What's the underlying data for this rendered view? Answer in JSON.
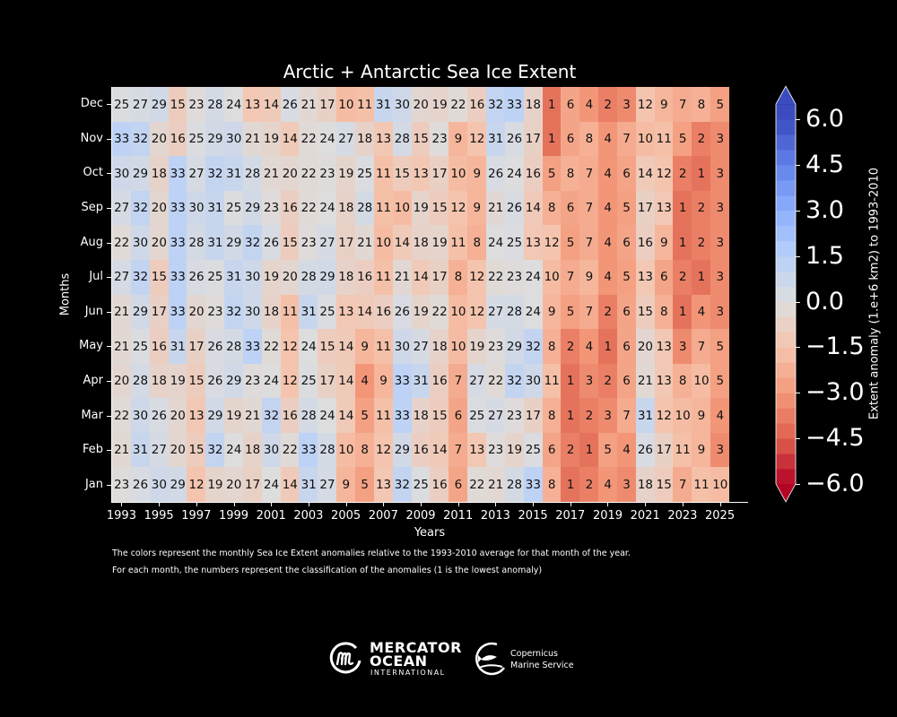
{
  "chart_data": {
    "type": "heatmap",
    "title": "Arctic + Antarctic Sea Ice Extent",
    "xlabel": "Years",
    "ylabel": "Months",
    "x": [
      1993,
      1994,
      1995,
      1996,
      1997,
      1998,
      1999,
      2000,
      2001,
      2002,
      2003,
      2004,
      2005,
      2006,
      2007,
      2008,
      2009,
      2010,
      2011,
      2012,
      2013,
      2014,
      2015,
      2016,
      2017,
      2018,
      2019,
      2020,
      2021,
      2022,
      2023,
      2024,
      2025
    ],
    "x_tick_labels": [
      "1993",
      "1995",
      "1997",
      "1999",
      "2001",
      "2003",
      "2005",
      "2007",
      "2009",
      "2011",
      "2013",
      "2015",
      "2017",
      "2019",
      "2021",
      "2023",
      "2025"
    ],
    "y": [
      "Dec",
      "Nov",
      "Oct",
      "Sep",
      "Aug",
      "Jul",
      "Jun",
      "May",
      "Apr",
      "Mar",
      "Feb",
      "Jan"
    ],
    "ranks": [
      [
        25,
        27,
        29,
        15,
        23,
        28,
        24,
        13,
        14,
        26,
        21,
        17,
        10,
        11,
        31,
        30,
        20,
        19,
        22,
        16,
        32,
        33,
        18,
        1,
        6,
        4,
        2,
        3,
        12,
        9,
        7,
        8,
        5
      ],
      [
        33,
        32,
        20,
        16,
        25,
        29,
        30,
        21,
        19,
        14,
        22,
        24,
        27,
        18,
        13,
        28,
        15,
        23,
        9,
        12,
        31,
        26,
        17,
        1,
        6,
        8,
        4,
        7,
        10,
        11,
        5,
        2,
        3
      ],
      [
        30,
        29,
        18,
        33,
        27,
        32,
        31,
        28,
        21,
        20,
        22,
        23,
        19,
        25,
        11,
        15,
        13,
        17,
        10,
        9,
        26,
        24,
        16,
        5,
        8,
        7,
        4,
        6,
        14,
        12,
        2,
        1,
        3
      ],
      [
        27,
        32,
        20,
        33,
        30,
        31,
        25,
        29,
        23,
        16,
        22,
        24,
        18,
        28,
        11,
        10,
        19,
        15,
        12,
        9,
        21,
        26,
        14,
        8,
        6,
        7,
        4,
        5,
        17,
        13,
        1,
        2,
        3
      ],
      [
        22,
        30,
        20,
        33,
        28,
        31,
        29,
        32,
        26,
        15,
        23,
        27,
        17,
        21,
        10,
        14,
        18,
        19,
        11,
        8,
        24,
        25,
        13,
        12,
        5,
        7,
        4,
        6,
        16,
        9,
        1,
        2,
        3
      ],
      [
        27,
        32,
        15,
        33,
        26,
        25,
        31,
        30,
        19,
        20,
        28,
        29,
        18,
        16,
        11,
        21,
        14,
        17,
        8,
        12,
        22,
        23,
        24,
        10,
        7,
        9,
        4,
        5,
        13,
        6,
        2,
        1,
        3
      ],
      [
        21,
        29,
        17,
        33,
        20,
        23,
        32,
        30,
        18,
        11,
        31,
        25,
        13,
        14,
        16,
        26,
        19,
        22,
        10,
        12,
        27,
        28,
        24,
        9,
        5,
        7,
        2,
        6,
        15,
        8,
        1,
        4,
        3
      ],
      [
        21,
        25,
        16,
        31,
        17,
        26,
        28,
        33,
        22,
        12,
        24,
        15,
        14,
        9,
        11,
        30,
        27,
        18,
        10,
        19,
        23,
        29,
        32,
        8,
        2,
        4,
        1,
        6,
        20,
        13,
        3,
        7,
        5
      ],
      [
        20,
        28,
        18,
        19,
        15,
        26,
        29,
        23,
        24,
        12,
        25,
        17,
        14,
        4,
        9,
        33,
        31,
        16,
        7,
        27,
        22,
        32,
        30,
        11,
        1,
        3,
        2,
        6,
        21,
        13,
        8,
        10,
        5
      ],
      [
        22,
        30,
        26,
        20,
        13,
        29,
        19,
        21,
        32,
        16,
        28,
        24,
        14,
        5,
        11,
        33,
        18,
        15,
        6,
        25,
        27,
        23,
        17,
        8,
        1,
        2,
        3,
        7,
        31,
        12,
        10,
        9,
        4
      ],
      [
        21,
        31,
        27,
        20,
        15,
        32,
        24,
        18,
        30,
        22,
        33,
        28,
        10,
        8,
        12,
        29,
        16,
        14,
        7,
        13,
        23,
        19,
        25,
        6,
        2,
        1,
        5,
        4,
        26,
        17,
        11,
        9,
        3
      ],
      [
        23,
        26,
        30,
        29,
        12,
        19,
        20,
        17,
        24,
        14,
        31,
        27,
        9,
        5,
        13,
        32,
        25,
        16,
        6,
        22,
        21,
        28,
        33,
        8,
        1,
        2,
        4,
        3,
        18,
        15,
        7,
        11,
        10
      ]
    ],
    "colorbar": {
      "label": "Extent anomaly (1.e+6 km2) to 1993-2010",
      "range": [
        -6.0,
        6.0
      ],
      "ticks": [
        "6.0",
        "4.5",
        "3.0",
        "1.5",
        "0.0",
        "−1.5",
        "−3.0",
        "−4.5",
        "−6.0"
      ],
      "tick_values": [
        6.0,
        4.5,
        3.0,
        1.5,
        0.0,
        -1.5,
        -3.0,
        -4.5,
        -6.0
      ],
      "colormap": "coolwarm_r"
    },
    "notes": [
      "The colors represent the monthly Sea Ice Extent anomalies relative to the 1993-2010 average for that month of the year.",
      "For each month, the numbers represent the classification of the anomalies (1 is the lowest anomaly)"
    ]
  },
  "logos": {
    "mercator_line1": "MERCATOR",
    "mercator_line2": "OCEAN",
    "mercator_line3": "INTERNATIONAL",
    "copernicus_line1": "Copernicus",
    "copernicus_line2": "Marine Service"
  }
}
